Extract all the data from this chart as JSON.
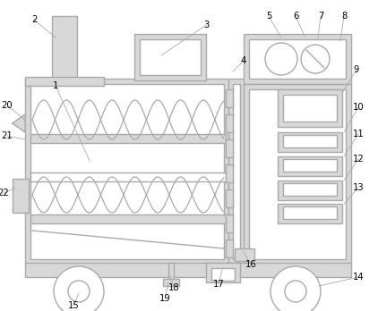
{
  "bg_color": "#ffffff",
  "line_color": "#aaaaaa",
  "fill_color": "#d8d8d8",
  "lw": 1.0,
  "figsize": [
    4.22,
    3.48
  ],
  "dpi": 100
}
